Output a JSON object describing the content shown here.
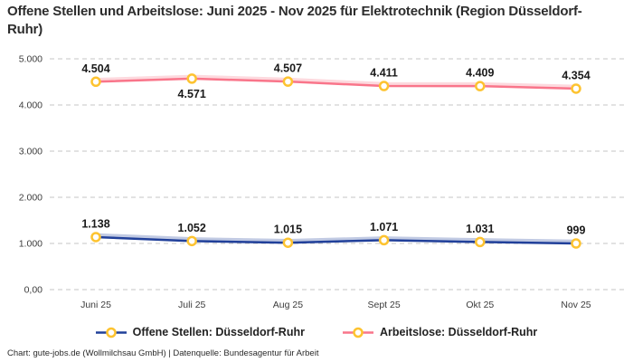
{
  "title": "Offene Stellen und Arbeitslose: Juni 2025 - Nov 2025 für Elektrotechnik (Region Düsseldorf-Ruhr)",
  "footer": "Chart: gute-jobs.de (Wollmilchsau GmbH) | Datenquelle: Bundesagentur für Arbeit",
  "colors": {
    "open_positions_line": "#21409a",
    "unemployed_line": "#f9758a",
    "marker_ring": "#fdc330",
    "marker_fill": "#ffffff",
    "gridline": "#c4c4c4",
    "value_label": "#1a1a1a",
    "tick_label": "#3c3c3c"
  },
  "legend": {
    "items": [
      {
        "label": "Offene Stellen: Düsseldorf-Ruhr",
        "color": "#21409a"
      },
      {
        "label": "Arbeitslose: Düsseldorf-Ruhr",
        "color": "#f9758a"
      }
    ]
  },
  "chart_data": {
    "type": "line",
    "title": "Offene Stellen und Arbeitslose: Juni 2025 - Nov 2025 für Elektrotechnik (Region Düsseldorf-Ruhr)",
    "categories": [
      "Juni 25",
      "Juli 25",
      "Aug 25",
      "Sept 25",
      "Okt 25",
      "Nov 25"
    ],
    "series": [
      {
        "name": "Offene Stellen: Düsseldorf-Ruhr",
        "color": "#21409a",
        "values": [
          1138,
          1052,
          1015,
          1071,
          1031,
          999
        ],
        "labels": [
          "1.138",
          "1.052",
          "1.015",
          "1.071",
          "1.031",
          "999"
        ],
        "label_below": [
          false,
          false,
          false,
          false,
          false,
          false
        ]
      },
      {
        "name": "Arbeitslose: Düsseldorf-Ruhr",
        "color": "#f9758a",
        "values": [
          4504,
          4571,
          4507,
          4411,
          4409,
          4354
        ],
        "labels": [
          "4.504",
          "4.571",
          "4.507",
          "4.411",
          "4.409",
          "4.354"
        ],
        "label_below": [
          false,
          true,
          false,
          false,
          false,
          false
        ]
      }
    ],
    "y_ticks": [
      {
        "value": 5000,
        "label": "5.000"
      },
      {
        "value": 4000,
        "label": "4.000"
      },
      {
        "value": 3000,
        "label": "3.000"
      },
      {
        "value": 2000,
        "label": "2.000"
      },
      {
        "value": 1000,
        "label": "1.000"
      },
      {
        "value": 0,
        "label": "0,00"
      }
    ],
    "ylim": [
      0,
      5000
    ],
    "xlabel": "",
    "ylabel": "",
    "grid": "horizontal-dashed",
    "legend_position": "bottom",
    "marker": "circle"
  }
}
